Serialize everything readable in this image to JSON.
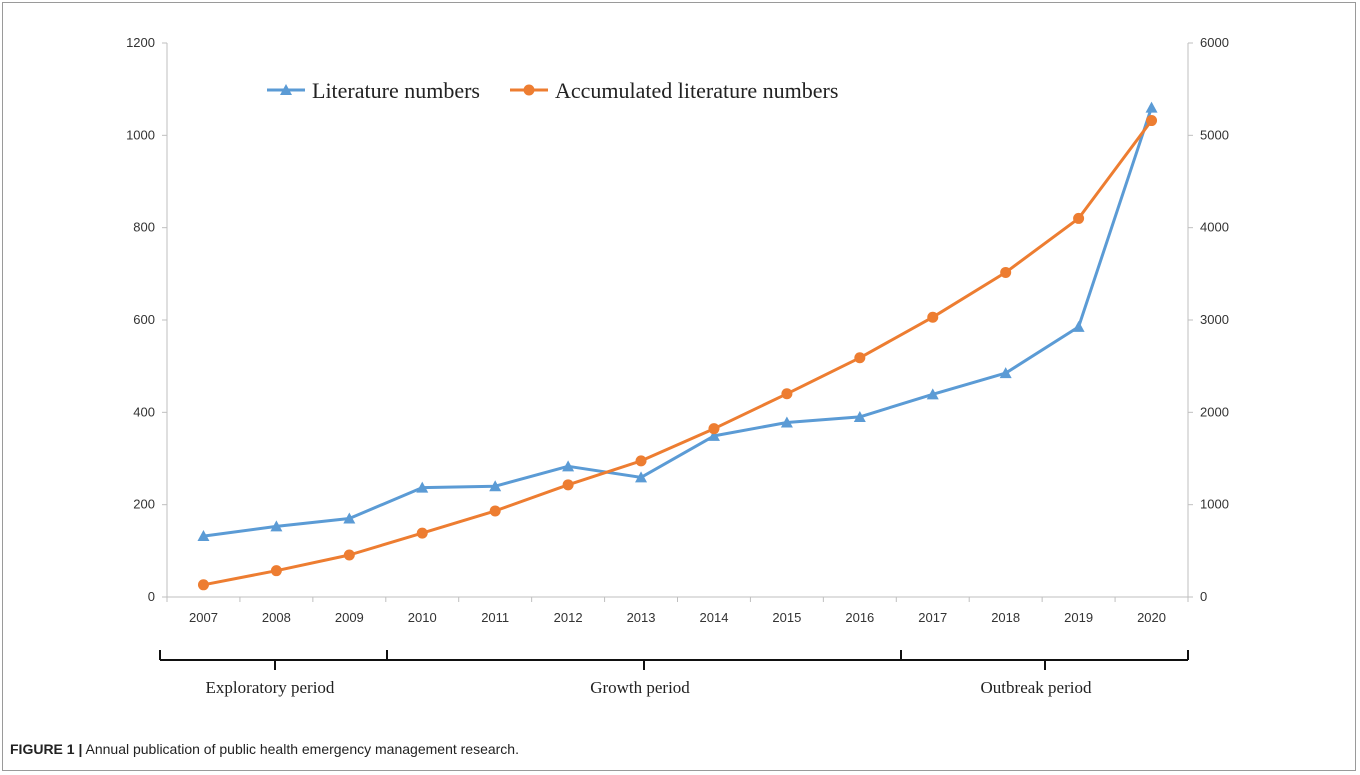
{
  "chart_data": {
    "type": "line",
    "x": [
      "2007",
      "2008",
      "2009",
      "2010",
      "2011",
      "2012",
      "2013",
      "2014",
      "2015",
      "2016",
      "2017",
      "2018",
      "2019",
      "2020"
    ],
    "series": [
      {
        "name": "Literature numbers",
        "axis": "left",
        "marker": "triangle",
        "color": "#5b9bd5",
        "values": [
          132,
          153,
          170,
          237,
          240,
          283,
          259,
          349,
          378,
          390,
          439,
          485,
          585,
          1060
        ]
      },
      {
        "name": "Accumulated literature numbers",
        "axis": "right",
        "marker": "circle",
        "color": "#ed7d31",
        "values": [
          132,
          285,
          455,
          692,
          932,
          1215,
          1474,
          1823,
          2201,
          2591,
          3030,
          3515,
          4100,
          5160
        ]
      }
    ],
    "y_left": {
      "min": 0,
      "max": 1200,
      "ticks": [
        "0",
        "200",
        "400",
        "600",
        "800",
        "1000",
        "1200"
      ]
    },
    "y_right": {
      "min": 0,
      "max": 6000,
      "ticks": [
        "0",
        "1000",
        "2000",
        "3000",
        "4000",
        "5000",
        "6000"
      ]
    },
    "legend_position": "top-center",
    "grid": false,
    "periods": [
      {
        "label": "Exploratory period",
        "from": "2007",
        "to": "2009"
      },
      {
        "label": "Growth period",
        "from": "2010",
        "to": "2016"
      },
      {
        "label": "Outbreak period",
        "from": "2017",
        "to": "2020"
      }
    ]
  },
  "caption": {
    "label": "FIGURE 1 |",
    "text": "Annual publication of public health emergency management research."
  }
}
